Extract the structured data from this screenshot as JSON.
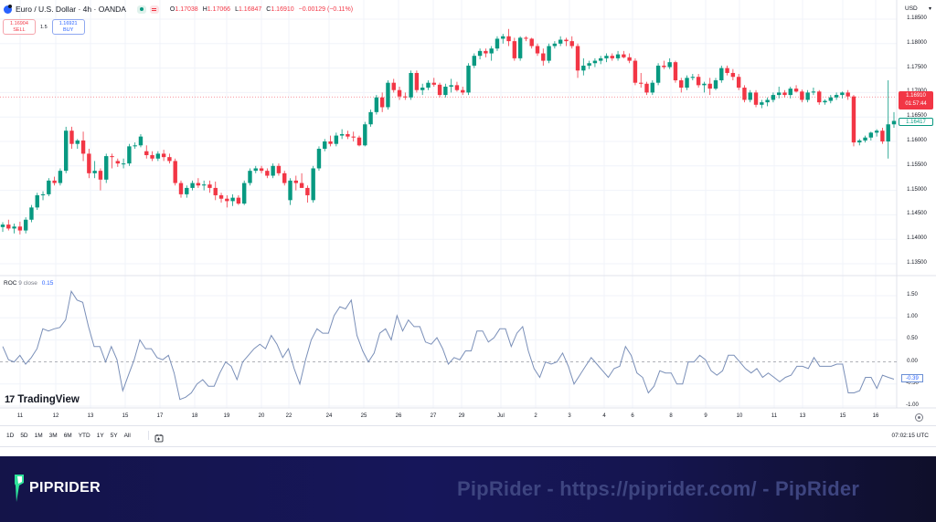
{
  "header": {
    "symbol_title": "Euro / U.S. Dollar · 4h · OANDA",
    "ohlc": {
      "open_label": "O",
      "open": "1.17038",
      "high_label": "H",
      "high": "1.17066",
      "low_label": "L",
      "low": "1.16847",
      "close_label": "C",
      "close": "1.16910",
      "change": "−0.00129 (−0.11%)"
    },
    "trade": {
      "sell_price": "1.16904",
      "sell_label": "SELL",
      "spread": "1.5",
      "buy_price": "1.16921",
      "buy_label": "BUY"
    },
    "currency": "USD"
  },
  "price_axis": {
    "ticks": [
      "1.18500",
      "1.18000",
      "1.17500",
      "1.17000",
      "1.16500",
      "1.16000",
      "1.15500",
      "1.15000",
      "1.14500",
      "1.14000",
      "1.13500"
    ],
    "current_price": "1.16910",
    "countdown": "01:57:44",
    "low_marker": "1.16417"
  },
  "indicator": {
    "name": "ROC",
    "params": "9 close",
    "value": "0.15",
    "axis_ticks": [
      "1.50",
      "1.00",
      "0.50",
      "0.00",
      "-0.50",
      "-1.00"
    ],
    "last_value": "-0.39"
  },
  "watermark": "TradingView",
  "time_axis": [
    "11",
    "12",
    "13",
    "15",
    "17",
    "18",
    "19",
    "20",
    "22",
    "24",
    "25",
    "26",
    "27",
    "29",
    "Jul",
    "2",
    "3",
    "4",
    "6",
    "8",
    "9",
    "10",
    "11",
    "13",
    "15",
    "16"
  ],
  "range_buttons": [
    "1D",
    "5D",
    "1M",
    "3M",
    "6M",
    "YTD",
    "1Y",
    "5Y",
    "All"
  ],
  "clock": "07:02:15 UTC",
  "footer": {
    "brand": "PIPRIDER",
    "url_text": "PipRider - https://piprider.com/ - PipRider"
  },
  "colors": {
    "up": "#089981",
    "down": "#f23645",
    "roc_line": "#7a8fb8",
    "grid": "#f0f3fa",
    "footer_bg": "#16165a"
  },
  "chart_data": {
    "type": "candlestick",
    "title": "Euro / U.S. Dollar · 4h · OANDA",
    "ylim": [
      1.132,
      1.187
    ],
    "candles": [
      [
        1.1425,
        1.1435,
        1.1415,
        1.143
      ],
      [
        1.143,
        1.144,
        1.1418,
        1.1422
      ],
      [
        1.1422,
        1.1432,
        1.1412,
        1.1426
      ],
      [
        1.1426,
        1.1436,
        1.141,
        1.1418
      ],
      [
        1.1418,
        1.1445,
        1.1412,
        1.144
      ],
      [
        1.144,
        1.147,
        1.1435,
        1.1465
      ],
      [
        1.1465,
        1.1495,
        1.146,
        1.149
      ],
      [
        1.149,
        1.1498,
        1.148,
        1.1492
      ],
      [
        1.1492,
        1.1525,
        1.1488,
        1.152
      ],
      [
        1.152,
        1.1528,
        1.151,
        1.1515
      ],
      [
        1.1515,
        1.1545,
        1.151,
        1.154
      ],
      [
        1.154,
        1.163,
        1.1535,
        1.1622
      ],
      [
        1.1622,
        1.163,
        1.1585,
        1.1595
      ],
      [
        1.1595,
        1.1605,
        1.1585,
        1.1602
      ],
      [
        1.1602,
        1.162,
        1.156,
        1.1575
      ],
      [
        1.1575,
        1.1585,
        1.1525,
        1.1535
      ],
      [
        1.1535,
        1.156,
        1.1525,
        1.154
      ],
      [
        1.154,
        1.1545,
        1.15,
        1.1522
      ],
      [
        1.1522,
        1.1575,
        1.1515,
        1.157
      ],
      [
        1.157,
        1.1575,
        1.1545,
        1.1568
      ],
      [
        1.156,
        1.1565,
        1.1548,
        1.1555
      ],
      [
        1.1555,
        1.1565,
        1.1545,
        1.1555
      ],
      [
        1.1555,
        1.1595,
        1.155,
        1.159
      ],
      [
        1.159,
        1.1598,
        1.1585,
        1.1592
      ],
      [
        1.1592,
        1.1615,
        1.1588,
        1.161
      ],
      [
        1.158,
        1.1592,
        1.1565,
        1.1572
      ],
      [
        1.1572,
        1.158,
        1.156,
        1.1565
      ],
      [
        1.1565,
        1.158,
        1.156,
        1.1575
      ],
      [
        1.1575,
        1.1583,
        1.156,
        1.1568
      ],
      [
        1.1568,
        1.1575,
        1.1555,
        1.156
      ],
      [
        1.156,
        1.1565,
        1.151,
        1.1515
      ],
      [
        1.1515,
        1.152,
        1.1485,
        1.1492
      ],
      [
        1.1492,
        1.151,
        1.1485,
        1.1505
      ],
      [
        1.1505,
        1.152,
        1.15,
        1.1515
      ],
      [
        1.1515,
        1.1525,
        1.1505,
        1.151
      ],
      [
        1.151,
        1.152,
        1.15,
        1.1512
      ],
      [
        1.1512,
        1.152,
        1.1495,
        1.1505
      ],
      [
        1.1505,
        1.1518,
        1.148,
        1.149
      ],
      [
        1.149,
        1.1495,
        1.1475,
        1.1483
      ],
      [
        1.1483,
        1.149,
        1.1465,
        1.1478
      ],
      [
        1.1478,
        1.1492,
        1.1468,
        1.1485
      ],
      [
        1.1485,
        1.149,
        1.147,
        1.1473
      ],
      [
        1.1473,
        1.152,
        1.147,
        1.1515
      ],
      [
        1.1515,
        1.1545,
        1.151,
        1.154
      ],
      [
        1.154,
        1.155,
        1.1535,
        1.1545
      ],
      [
        1.1545,
        1.155,
        1.1535,
        1.154
      ],
      [
        1.154,
        1.1545,
        1.1525,
        1.153
      ],
      [
        1.153,
        1.1555,
        1.1525,
        1.155
      ],
      [
        1.155,
        1.1555,
        1.153,
        1.1535
      ],
      [
        1.1535,
        1.154,
        1.151,
        1.1515
      ],
      [
        1.148,
        1.1525,
        1.147,
        1.152
      ],
      [
        1.152,
        1.153,
        1.15,
        1.1515
      ],
      [
        1.1515,
        1.1535,
        1.1505,
        1.1505
      ],
      [
        1.1505,
        1.151,
        1.1475,
        1.149
      ],
      [
        1.148,
        1.155,
        1.1475,
        1.1545
      ],
      [
        1.1545,
        1.159,
        1.154,
        1.1585
      ],
      [
        1.1585,
        1.1605,
        1.158,
        1.16
      ],
      [
        1.16,
        1.1612,
        1.159,
        1.1595
      ],
      [
        1.1595,
        1.1618,
        1.159,
        1.1612
      ],
      [
        1.1612,
        1.1625,
        1.1605,
        1.1615
      ],
      [
        1.1615,
        1.1622,
        1.1605,
        1.161
      ],
      [
        1.161,
        1.162,
        1.16,
        1.1608
      ],
      [
        1.1608,
        1.1612,
        1.159,
        1.1592
      ],
      [
        1.1592,
        1.164,
        1.159,
        1.1635
      ],
      [
        1.1635,
        1.1665,
        1.163,
        1.166
      ],
      [
        1.166,
        1.1695,
        1.1655,
        1.169
      ],
      [
        1.169,
        1.17,
        1.166,
        1.167
      ],
      [
        1.167,
        1.1725,
        1.1665,
        1.172
      ],
      [
        1.172,
        1.1728,
        1.17,
        1.1705
      ],
      [
        1.1705,
        1.1712,
        1.1685,
        1.1692
      ],
      [
        1.1692,
        1.17,
        1.1685,
        1.169
      ],
      [
        1.169,
        1.1745,
        1.1685,
        1.174
      ],
      [
        1.174,
        1.1745,
        1.17,
        1.1705
      ],
      [
        1.1705,
        1.1718,
        1.1695,
        1.171
      ],
      [
        1.171,
        1.1725,
        1.1705,
        1.172
      ],
      [
        1.172,
        1.173,
        1.1712,
        1.1716
      ],
      [
        1.1716,
        1.172,
        1.169,
        1.1695
      ],
      [
        1.1695,
        1.1718,
        1.169,
        1.1712
      ],
      [
        1.1712,
        1.1728,
        1.17,
        1.1715
      ],
      [
        1.1715,
        1.1722,
        1.1702,
        1.1705
      ],
      [
        1.1705,
        1.1712,
        1.1695,
        1.17
      ],
      [
        1.17,
        1.176,
        1.1695,
        1.1755
      ],
      [
        1.1755,
        1.178,
        1.175,
        1.1775
      ],
      [
        1.1775,
        1.179,
        1.1768,
        1.1785
      ],
      [
        1.1785,
        1.179,
        1.1772,
        1.178
      ],
      [
        1.178,
        1.1795,
        1.1765,
        1.179
      ],
      [
        1.179,
        1.1815,
        1.1785,
        1.181
      ],
      [
        1.181,
        1.182,
        1.18,
        1.1815
      ],
      [
        1.1815,
        1.183,
        1.1795,
        1.1805
      ],
      [
        1.1805,
        1.1812,
        1.1765,
        1.177
      ],
      [
        1.177,
        1.1815,
        1.1765,
        1.1812
      ],
      [
        1.1812,
        1.1815,
        1.1805,
        1.181
      ],
      [
        1.181,
        1.1812,
        1.179,
        1.1795
      ],
      [
        1.1795,
        1.18,
        1.1775,
        1.178
      ],
      [
        1.178,
        1.179,
        1.1755,
        1.1765
      ],
      [
        1.1765,
        1.18,
        1.176,
        1.1795
      ],
      [
        1.1795,
        1.1805,
        1.179,
        1.18
      ],
      [
        1.18,
        1.1815,
        1.1795,
        1.1808
      ],
      [
        1.1808,
        1.1812,
        1.1795,
        1.1805
      ],
      [
        1.1805,
        1.1815,
        1.179,
        1.1795
      ],
      [
        1.1795,
        1.18,
        1.173,
        1.1745
      ],
      [
        1.1745,
        1.177,
        1.1735,
        1.1755
      ],
      [
        1.1755,
        1.1765,
        1.1748,
        1.176
      ],
      [
        1.176,
        1.177,
        1.1752,
        1.1765
      ],
      [
        1.1765,
        1.1775,
        1.1758,
        1.177
      ],
      [
        1.177,
        1.178,
        1.1762,
        1.1775
      ],
      [
        1.1775,
        1.178,
        1.1765,
        1.177
      ],
      [
        1.177,
        1.1785,
        1.1765,
        1.1778
      ],
      [
        1.1778,
        1.1785,
        1.177,
        1.1772
      ],
      [
        1.1772,
        1.178,
        1.176,
        1.1765
      ],
      [
        1.1765,
        1.177,
        1.1715,
        1.172
      ],
      [
        1.172,
        1.174,
        1.171,
        1.1718
      ],
      [
        1.1718,
        1.1722,
        1.1695,
        1.17
      ],
      [
        1.17,
        1.1725,
        1.1695,
        1.172
      ],
      [
        1.172,
        1.176,
        1.1715,
        1.1755
      ],
      [
        1.1755,
        1.1765,
        1.1748,
        1.1752
      ],
      [
        1.1752,
        1.177,
        1.1748,
        1.1762
      ],
      [
        1.1762,
        1.1765,
        1.172,
        1.1725
      ],
      [
        1.1725,
        1.173,
        1.17,
        1.171
      ],
      [
        1.171,
        1.1735,
        1.1705,
        1.173
      ],
      [
        1.173,
        1.1738,
        1.1725,
        1.1732
      ],
      [
        1.1732,
        1.1738,
        1.171,
        1.1715
      ],
      [
        1.1715,
        1.1722,
        1.17,
        1.1718
      ],
      [
        1.1718,
        1.173,
        1.1695,
        1.1708
      ],
      [
        1.1708,
        1.173,
        1.1705,
        1.1725
      ],
      [
        1.1725,
        1.1755,
        1.172,
        1.175
      ],
      [
        1.175,
        1.1755,
        1.1735,
        1.174
      ],
      [
        1.174,
        1.1748,
        1.1725,
        1.1732
      ],
      [
        1.1732,
        1.1738,
        1.1705,
        1.171
      ],
      [
        1.171,
        1.1715,
        1.168,
        1.1685
      ],
      [
        1.1685,
        1.1705,
        1.168,
        1.17
      ],
      [
        1.17,
        1.1705,
        1.167,
        1.1675
      ],
      [
        1.1675,
        1.1685,
        1.1668,
        1.168
      ],
      [
        1.168,
        1.169,
        1.1672,
        1.1685
      ],
      [
        1.1685,
        1.17,
        1.168,
        1.1695
      ],
      [
        1.1695,
        1.1712,
        1.1688,
        1.17
      ],
      [
        1.17,
        1.1705,
        1.169,
        1.1695
      ],
      [
        1.1695,
        1.1712,
        1.1688,
        1.1708
      ],
      [
        1.1708,
        1.1715,
        1.17,
        1.1702
      ],
      [
        1.1702,
        1.1706,
        1.168,
        1.1685
      ],
      [
        1.1685,
        1.1705,
        1.168,
        1.17
      ],
      [
        1.17,
        1.171,
        1.1695,
        1.1702
      ],
      [
        1.1702,
        1.1705,
        1.1675,
        1.168
      ],
      [
        1.168,
        1.1686,
        1.1675,
        1.1683
      ],
      [
        1.1683,
        1.1695,
        1.1678,
        1.169
      ],
      [
        1.169,
        1.17,
        1.1685,
        1.1695
      ],
      [
        1.1695,
        1.1702,
        1.1688,
        1.17
      ],
      [
        1.17,
        1.1705,
        1.1685,
        1.1692
      ],
      [
        1.1692,
        1.1695,
        1.159,
        1.1598
      ],
      [
        1.1598,
        1.1605,
        1.1592,
        1.1602
      ],
      [
        1.1602,
        1.1612,
        1.1598,
        1.1608
      ],
      [
        1.1608,
        1.162,
        1.1602,
        1.1618
      ],
      [
        1.1618,
        1.1625,
        1.161,
        1.1622
      ],
      [
        1.1622,
        1.1628,
        1.1595,
        1.16
      ],
      [
        1.16,
        1.1725,
        1.1565,
        1.1635
      ],
      [
        1.1635,
        1.166,
        1.1628,
        1.1642
      ]
    ],
    "roc_series": [
      0.35,
      0.05,
      0.0,
      0.15,
      -0.05,
      0.1,
      0.3,
      0.75,
      0.7,
      0.75,
      0.78,
      0.95,
      1.6,
      1.4,
      1.35,
      0.8,
      0.35,
      0.35,
      0.0,
      0.35,
      0.05,
      -0.65,
      -0.3,
      0.05,
      0.5,
      0.3,
      0.3,
      0.1,
      0.05,
      0.15,
      -0.25,
      -0.85,
      -0.8,
      -0.7,
      -0.5,
      -0.4,
      -0.55,
      -0.55,
      -0.25,
      0.0,
      -0.1,
      -0.4,
      0.0,
      0.15,
      0.3,
      0.4,
      0.3,
      0.6,
      0.4,
      0.1,
      0.3,
      -0.15,
      -0.5,
      0.05,
      0.5,
      0.75,
      0.65,
      0.65,
      1.05,
      1.25,
      1.2,
      1.4,
      0.6,
      0.25,
      0.0,
      0.2,
      0.65,
      0.75,
      0.5,
      1.05,
      0.7,
      0.95,
      0.8,
      0.8,
      0.45,
      0.4,
      0.55,
      0.3,
      -0.05,
      0.1,
      0.05,
      0.25,
      0.25,
      0.7,
      0.7,
      0.45,
      0.55,
      0.75,
      0.75,
      0.35,
      0.65,
      0.8,
      0.25,
      -0.15,
      -0.35,
      0.0,
      -0.05,
      0.0,
      0.2,
      -0.1,
      -0.5,
      -0.3,
      -0.1,
      0.1,
      -0.05,
      -0.2,
      -0.35,
      -0.15,
      -0.1,
      0.35,
      0.15,
      -0.25,
      -0.35,
      -0.7,
      -0.55,
      -0.2,
      -0.25,
      -0.25,
      -0.5,
      -0.5,
      0.0,
      0.0,
      0.15,
      0.05,
      -0.2,
      -0.3,
      -0.2,
      0.15,
      0.15,
      0.0,
      -0.15,
      -0.25,
      -0.15,
      -0.35,
      -0.25,
      -0.35,
      -0.45,
      -0.35,
      -0.3,
      -0.1,
      -0.1,
      -0.15,
      0.1,
      -0.1,
      -0.1,
      -0.1,
      -0.05,
      -0.05,
      -0.7,
      -0.7,
      -0.65,
      -0.35,
      -0.35,
      -0.6,
      -0.3,
      -0.35,
      -0.39
    ]
  }
}
